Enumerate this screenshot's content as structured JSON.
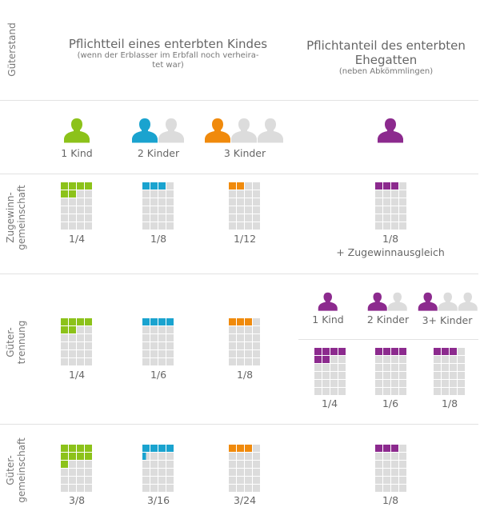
{
  "colors": {
    "green": "#8cc21a",
    "blue": "#1aa3cf",
    "orange": "#f08a0c",
    "purple": "#8c2a8e",
    "inactive": "#dcdcdc"
  },
  "header": {
    "column_label": "Güterstand",
    "child_title": "Pflichtteil eines enterbten Kindes",
    "child_subtitle": "(wenn der Erblasser im Erbfall noch verheira-\ntet war)",
    "spouse_title": "Pflichtanteil des enterbten\nEhegatten",
    "spouse_subtitle": "(neben Abkömmlingen)"
  },
  "children_icons": [
    {
      "label": "1 Kind",
      "count": 1,
      "color": "green"
    },
    {
      "label": "2 Kinder",
      "count": 2,
      "color": "blue"
    },
    {
      "label": "3 Kinder",
      "count": 3,
      "color": "orange"
    }
  ],
  "spouse_icon": {
    "color": "purple"
  },
  "rows": [
    {
      "label": "Zugewinn-\ngemeinschaft",
      "children": [
        {
          "fraction": "1/4",
          "filled_sixths": 6,
          "color": "green"
        },
        {
          "fraction": "1/8",
          "filled_sixths": 3,
          "color": "blue"
        },
        {
          "fraction": "1/12",
          "filled_sixths": 2,
          "color": "orange"
        }
      ],
      "spouse": [
        {
          "fraction": "1/8",
          "filled_sixths": 3,
          "color": "purple",
          "note": "+ Zugewinnausgleich"
        }
      ]
    },
    {
      "label": "Güter-\ntrennung",
      "children": [
        {
          "fraction": "1/4",
          "filled_sixths": 6,
          "color": "green"
        },
        {
          "fraction": "1/6",
          "filled_sixths": 4,
          "color": "blue"
        },
        {
          "fraction": "1/8",
          "filled_sixths": 3,
          "color": "orange"
        }
      ],
      "spouse_icons": [
        {
          "label": "1 Kind",
          "count": 1
        },
        {
          "label": "2 Kinder",
          "count": 2
        },
        {
          "label": "3+ Kinder",
          "count": 3
        }
      ],
      "spouse": [
        {
          "fraction": "1/4",
          "filled_sixths": 6,
          "color": "purple"
        },
        {
          "fraction": "1/6",
          "filled_sixths": 4,
          "color": "purple"
        },
        {
          "fraction": "1/8",
          "filled_sixths": 3,
          "color": "purple"
        }
      ]
    },
    {
      "label": "Güter-\ngemeinschaft",
      "children": [
        {
          "fraction": "3/8",
          "filled_sixths": 9,
          "color": "green"
        },
        {
          "fraction": "3/16",
          "filled_sixths": 4.5,
          "color": "blue"
        },
        {
          "fraction": "3/24",
          "filled_sixths": 3,
          "color": "orange"
        }
      ],
      "spouse": [
        {
          "fraction": "1/8",
          "filled_sixths": 3,
          "color": "purple"
        }
      ]
    }
  ]
}
